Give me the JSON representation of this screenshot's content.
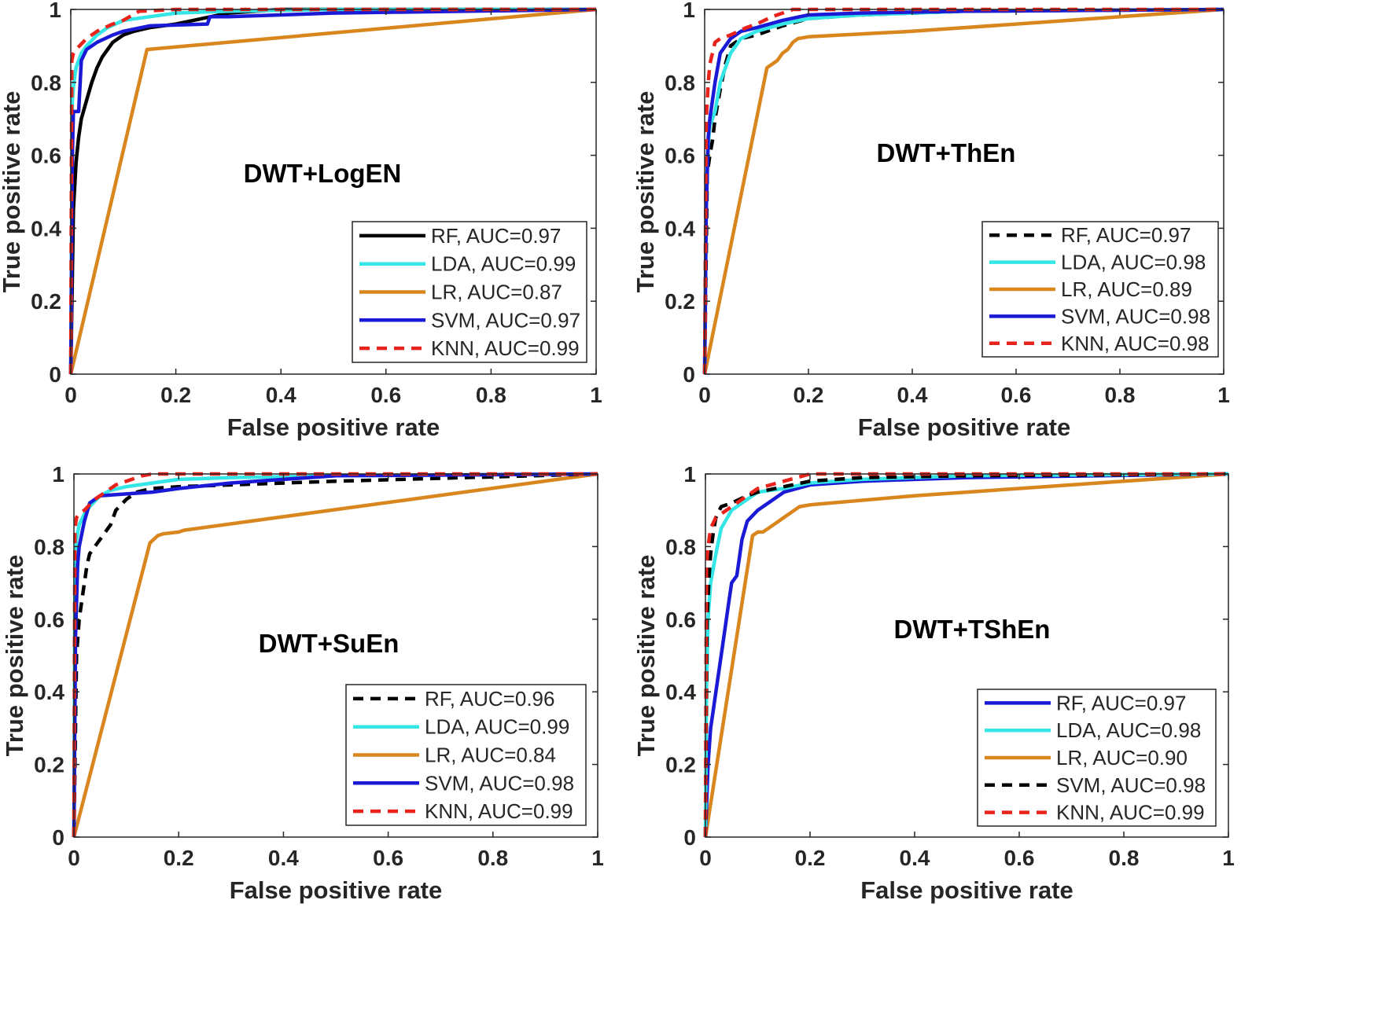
{
  "colors": {
    "rf": "#000000",
    "lda": "#35e6e6",
    "lr": "#d9861e",
    "svm": "#1a1ad6",
    "knn": "#e8231c",
    "axis": "#262626"
  },
  "chart_data": [
    {
      "type": "line",
      "title": "DWT+LogEN",
      "xlabel": "False positive rate",
      "ylabel": "True positive rate",
      "xlim": [
        0,
        1
      ],
      "ylim": [
        0,
        1
      ],
      "xticks": [
        "0",
        "0.2",
        "0.4",
        "0.6",
        "0.8",
        "1"
      ],
      "yticks": [
        "0",
        "0.2",
        "0.4",
        "0.6",
        "0.8",
        "1"
      ],
      "legend": "bottom-right",
      "series": [
        {
          "name": "RF, AUC=0.97",
          "key": "rf",
          "dash": false,
          "x": [
            0,
            0.005,
            0.01,
            0.015,
            0.02,
            0.03,
            0.04,
            0.05,
            0.06,
            0.07,
            0.08,
            0.1,
            0.12,
            0.15,
            0.2,
            0.25,
            0.3,
            0.4,
            0.5,
            0.6,
            1
          ],
          "y": [
            0,
            0.45,
            0.58,
            0.65,
            0.7,
            0.75,
            0.8,
            0.84,
            0.87,
            0.89,
            0.91,
            0.93,
            0.94,
            0.95,
            0.96,
            0.975,
            0.99,
            1,
            1,
            1,
            1
          ]
        },
        {
          "name": "LDA, AUC=0.99",
          "key": "lda",
          "dash": false,
          "x": [
            0,
            0.003,
            0.006,
            0.01,
            0.02,
            0.03,
            0.05,
            0.07,
            0.1,
            0.15,
            0.2,
            0.3,
            0.5,
            1
          ],
          "y": [
            0,
            0.75,
            0.8,
            0.84,
            0.88,
            0.9,
            0.93,
            0.95,
            0.97,
            0.98,
            0.99,
            0.995,
            1,
            1
          ]
        },
        {
          "name": "LR, AUC=0.87",
          "key": "lr",
          "dash": false,
          "x": [
            0,
            0.145,
            1
          ],
          "y": [
            0,
            0.89,
            1
          ]
        },
        {
          "name": "SVM, AUC=0.97",
          "key": "svm",
          "dash": false,
          "x": [
            0,
            0.003,
            0.005,
            0.015,
            0.02,
            0.03,
            0.05,
            0.08,
            0.1,
            0.15,
            0.26,
            0.265,
            0.3,
            0.5,
            1
          ],
          "y": [
            0,
            0.6,
            0.72,
            0.72,
            0.86,
            0.89,
            0.91,
            0.93,
            0.94,
            0.955,
            0.96,
            0.98,
            0.98,
            0.99,
            1
          ]
        },
        {
          "name": "KNN, AUC=0.99",
          "key": "knn",
          "dash": true,
          "x": [
            0,
            0.002,
            0.005,
            0.01,
            0.03,
            0.05,
            0.08,
            0.1,
            0.13,
            0.2,
            0.4,
            1
          ],
          "y": [
            0,
            0.86,
            0.88,
            0.89,
            0.92,
            0.94,
            0.96,
            0.97,
            0.995,
            1,
            1,
            1
          ]
        }
      ]
    },
    {
      "type": "line",
      "title": "DWT+ThEn",
      "xlabel": "False positive rate",
      "ylabel": "True positive rate",
      "xlim": [
        0,
        1
      ],
      "ylim": [
        0,
        1
      ],
      "xticks": [
        "0",
        "0.2",
        "0.4",
        "0.6",
        "0.8",
        "1"
      ],
      "yticks": [
        "0",
        "0.2",
        "0.4",
        "0.6",
        "0.8",
        "1"
      ],
      "legend": "bottom-right",
      "series": [
        {
          "name": "RF, AUC=0.97",
          "key": "rf",
          "dash": true,
          "x": [
            0,
            0.005,
            0.01,
            0.015,
            0.02,
            0.03,
            0.04,
            0.05,
            0.07,
            0.1,
            0.15,
            0.2,
            0.3,
            0.5,
            1
          ],
          "y": [
            0,
            0.55,
            0.6,
            0.64,
            0.7,
            0.78,
            0.85,
            0.9,
            0.92,
            0.93,
            0.955,
            0.975,
            0.985,
            0.995,
            1
          ]
        },
        {
          "name": "LDA, AUC=0.98",
          "key": "lda",
          "dash": false,
          "x": [
            0,
            0.003,
            0.007,
            0.01,
            0.02,
            0.03,
            0.05,
            0.07,
            0.1,
            0.15,
            0.2,
            0.3,
            0.5,
            1
          ],
          "y": [
            0,
            0.5,
            0.63,
            0.68,
            0.72,
            0.8,
            0.88,
            0.92,
            0.94,
            0.96,
            0.975,
            0.985,
            0.995,
            1
          ]
        },
        {
          "name": "LR, AUC=0.89",
          "key": "lr",
          "dash": false,
          "x": [
            0,
            0.12,
            0.13,
            0.14,
            0.15,
            0.16,
            0.17,
            0.18,
            0.2,
            0.4,
            0.6,
            0.8,
            1
          ],
          "y": [
            0,
            0.84,
            0.85,
            0.86,
            0.88,
            0.89,
            0.91,
            0.92,
            0.925,
            0.94,
            0.96,
            0.98,
            1
          ]
        },
        {
          "name": "SVM, AUC=0.98",
          "key": "svm",
          "dash": false,
          "x": [
            0,
            0.003,
            0.007,
            0.01,
            0.02,
            0.03,
            0.05,
            0.07,
            0.1,
            0.15,
            0.2,
            0.3,
            0.5,
            1
          ],
          "y": [
            0,
            0.45,
            0.65,
            0.7,
            0.8,
            0.88,
            0.92,
            0.94,
            0.95,
            0.97,
            0.985,
            0.99,
            0.995,
            1
          ]
        },
        {
          "name": "KNN, AUC=0.98",
          "key": "knn",
          "dash": true,
          "x": [
            0,
            0.003,
            0.007,
            0.01,
            0.015,
            0.02,
            0.03,
            0.05,
            0.08,
            0.1,
            0.13,
            0.17,
            0.2,
            0.4,
            1
          ],
          "y": [
            0,
            0.7,
            0.8,
            0.85,
            0.88,
            0.91,
            0.92,
            0.93,
            0.95,
            0.96,
            0.98,
            1,
            1,
            1,
            1
          ]
        }
      ]
    },
    {
      "type": "line",
      "title": "DWT+SuEn",
      "xlabel": "False positive rate",
      "ylabel": "True positive rate",
      "xlim": [
        0,
        1
      ],
      "ylim": [
        0,
        1
      ],
      "xticks": [
        "0",
        "0.2",
        "0.4",
        "0.6",
        "0.8",
        "1"
      ],
      "yticks": [
        "0",
        "0.2",
        "0.4",
        "0.6",
        "0.8",
        "1"
      ],
      "legend": "bottom-right",
      "series": [
        {
          "name": "RF, AUC=0.96",
          "key": "rf",
          "dash": true,
          "x": [
            0,
            0.005,
            0.01,
            0.015,
            0.02,
            0.025,
            0.03,
            0.04,
            0.05,
            0.07,
            0.08,
            0.1,
            0.12,
            0.15,
            0.2,
            0.3,
            0.5,
            1
          ],
          "y": [
            0,
            0.5,
            0.6,
            0.65,
            0.7,
            0.75,
            0.78,
            0.8,
            0.82,
            0.86,
            0.9,
            0.93,
            0.95,
            0.96,
            0.965,
            0.97,
            0.98,
            1
          ]
        },
        {
          "name": "LDA, AUC=0.99",
          "key": "lda",
          "dash": false,
          "x": [
            0,
            0.002,
            0.005,
            0.01,
            0.02,
            0.03,
            0.05,
            0.07,
            0.1,
            0.15,
            0.2,
            0.3,
            0.5,
            1
          ],
          "y": [
            0,
            0.75,
            0.82,
            0.86,
            0.89,
            0.91,
            0.94,
            0.955,
            0.965,
            0.975,
            0.985,
            0.99,
            0.995,
            1
          ]
        },
        {
          "name": "LR, AUC=0.84",
          "key": "lr",
          "dash": false,
          "x": [
            0,
            0.145,
            0.16,
            0.17,
            0.2,
            0.21,
            1
          ],
          "y": [
            0,
            0.81,
            0.83,
            0.835,
            0.84,
            0.845,
            1
          ]
        },
        {
          "name": "SVM, AUC=0.98",
          "key": "svm",
          "dash": false,
          "x": [
            0,
            0.003,
            0.007,
            0.01,
            0.02,
            0.03,
            0.05,
            0.1,
            0.15,
            0.2,
            0.3,
            0.4,
            0.5,
            1
          ],
          "y": [
            0,
            0.55,
            0.75,
            0.8,
            0.87,
            0.92,
            0.94,
            0.945,
            0.95,
            0.96,
            0.975,
            0.985,
            0.995,
            1
          ]
        },
        {
          "name": "KNN, AUC=0.99",
          "key": "knn",
          "dash": true,
          "x": [
            0,
            0.002,
            0.005,
            0.01,
            0.02,
            0.04,
            0.06,
            0.08,
            0.1,
            0.13,
            0.15,
            0.2,
            1
          ],
          "y": [
            0,
            0.85,
            0.88,
            0.89,
            0.9,
            0.93,
            0.95,
            0.97,
            0.98,
            0.995,
            1,
            1,
            1
          ]
        }
      ]
    },
    {
      "type": "line",
      "title": "DWT+TShEn",
      "xlabel": "False positive rate",
      "ylabel": "True positive rate",
      "xlim": [
        0,
        1
      ],
      "ylim": [
        0,
        1
      ],
      "xticks": [
        "0",
        "0.2",
        "0.4",
        "0.6",
        "0.8",
        "1"
      ],
      "yticks": [
        "0",
        "0.2",
        "0.4",
        "0.6",
        "0.8",
        "1"
      ],
      "legend": "bottom-right",
      "series": [
        {
          "name": "RF, AUC=0.97",
          "key": "svm",
          "dash": false,
          "x": [
            0,
            0.005,
            0.01,
            0.015,
            0.02,
            0.03,
            0.04,
            0.045,
            0.05,
            0.06,
            0.07,
            0.08,
            0.1,
            0.12,
            0.15,
            0.2,
            0.3,
            0.5,
            1
          ],
          "y": [
            0,
            0.2,
            0.3,
            0.35,
            0.4,
            0.5,
            0.6,
            0.65,
            0.7,
            0.72,
            0.82,
            0.87,
            0.9,
            0.92,
            0.95,
            0.97,
            0.98,
            0.99,
            1
          ]
        },
        {
          "name": "LDA, AUC=0.98",
          "key": "lda",
          "dash": false,
          "x": [
            0,
            0.002,
            0.005,
            0.01,
            0.02,
            0.03,
            0.05,
            0.08,
            0.1,
            0.15,
            0.2,
            0.3,
            0.5,
            1
          ],
          "y": [
            0,
            0.4,
            0.6,
            0.7,
            0.78,
            0.85,
            0.9,
            0.93,
            0.95,
            0.96,
            0.975,
            0.985,
            0.995,
            1
          ]
        },
        {
          "name": "LR, AUC=0.90",
          "key": "lr",
          "dash": false,
          "x": [
            0,
            0.09,
            0.1,
            0.11,
            0.12,
            0.13,
            0.14,
            0.15,
            0.16,
            0.17,
            0.18,
            0.2,
            0.4,
            0.6,
            0.8,
            1
          ],
          "y": [
            0,
            0.83,
            0.84,
            0.84,
            0.85,
            0.86,
            0.87,
            0.88,
            0.89,
            0.9,
            0.91,
            0.915,
            0.94,
            0.96,
            0.98,
            1
          ]
        },
        {
          "name": "SVM, AUC=0.98",
          "key": "rf",
          "dash": true,
          "x": [
            0,
            0.003,
            0.007,
            0.01,
            0.015,
            0.02,
            0.03,
            0.05,
            0.08,
            0.1,
            0.15,
            0.2,
            0.3,
            0.5,
            1
          ],
          "y": [
            0,
            0.6,
            0.72,
            0.78,
            0.84,
            0.88,
            0.91,
            0.92,
            0.94,
            0.95,
            0.965,
            0.98,
            0.99,
            0.995,
            1
          ]
        },
        {
          "name": "KNN, AUC=0.99",
          "key": "knn",
          "dash": true,
          "x": [
            0,
            0.002,
            0.005,
            0.01,
            0.02,
            0.04,
            0.07,
            0.1,
            0.15,
            0.2,
            1
          ],
          "y": [
            0,
            0.75,
            0.8,
            0.85,
            0.88,
            0.9,
            0.93,
            0.96,
            0.98,
            1,
            1
          ]
        }
      ]
    }
  ]
}
